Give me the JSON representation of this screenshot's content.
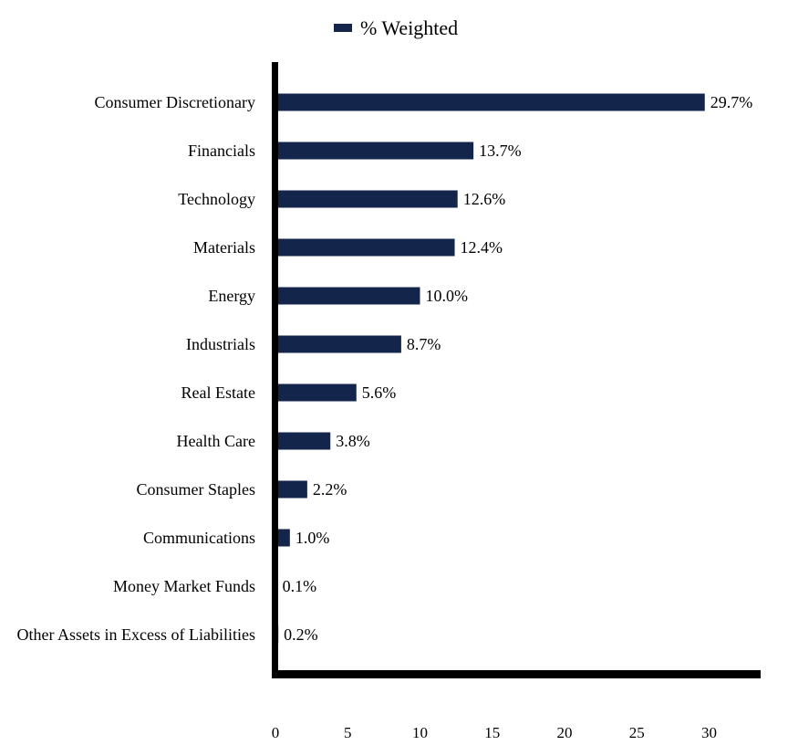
{
  "chart_data": {
    "type": "bar",
    "orientation": "horizontal",
    "categories": [
      "Consumer Discretionary",
      "Financials",
      "Technology",
      "Materials",
      "Energy",
      "Industrials",
      "Real Estate",
      "Health Care",
      "Consumer Staples",
      "Communications",
      "Money Market Funds",
      "Other Assets in Excess of Liabilities"
    ],
    "series": [
      {
        "name": "% Weighted",
        "values": [
          29.7,
          13.7,
          12.6,
          12.4,
          10.0,
          8.7,
          5.6,
          3.8,
          2.2,
          1.0,
          0.1,
          0.2
        ],
        "data_labels": [
          "29.7%",
          "13.7%",
          "12.6%",
          "12.4%",
          "10.0%",
          "8.7%",
          "5.6%",
          "3.8%",
          "2.2%",
          "1.0%",
          "0.1%",
          "0.2%"
        ]
      }
    ],
    "xlim": [
      0,
      33.5
    ],
    "xticks": [
      0,
      5,
      10,
      15,
      20,
      25,
      30
    ],
    "title": "",
    "xlabel": "",
    "ylabel": "",
    "grid": false,
    "legend_position": "top-center",
    "bar_color": "#14254b"
  }
}
